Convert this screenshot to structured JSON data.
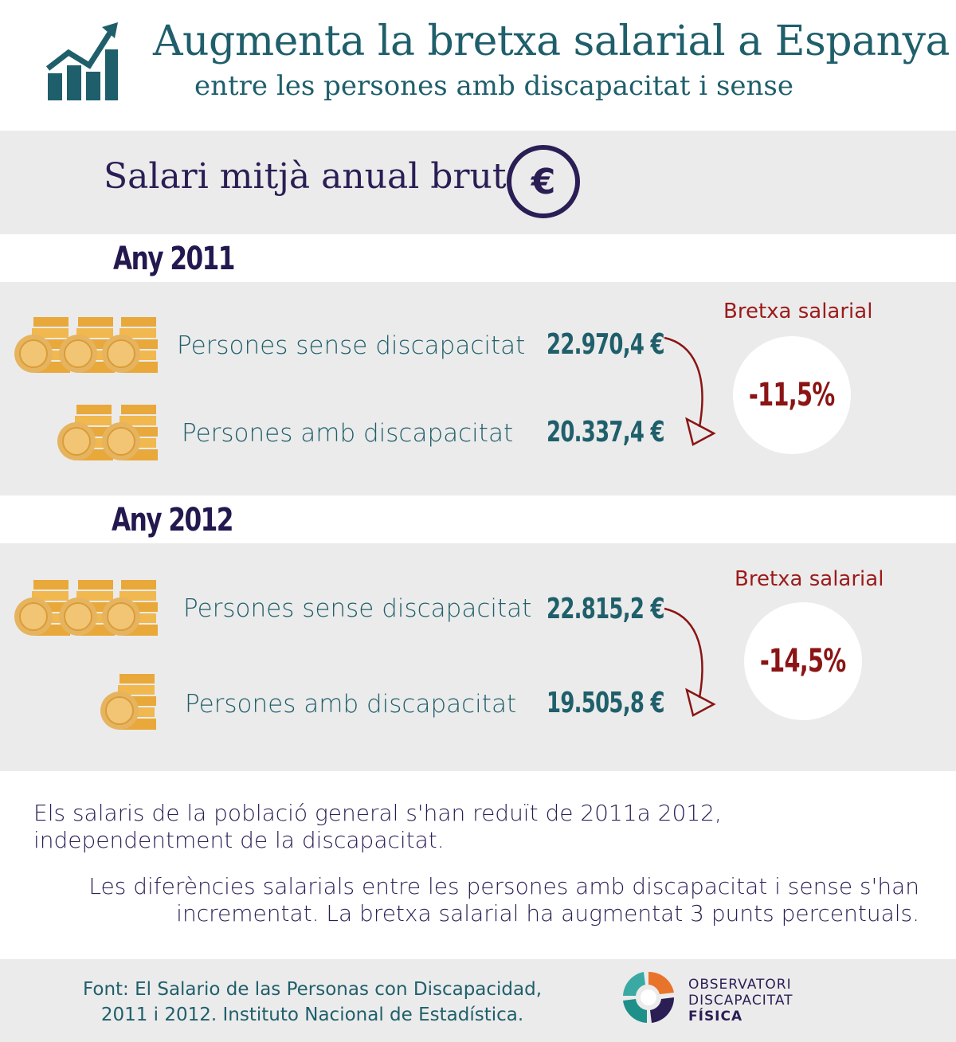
{
  "header": {
    "title": "Augmenta la bretxa salarial a Espanya",
    "subtitle": "entre les persones amb discapacitat i sense",
    "icon": "growth-chart-icon"
  },
  "salary_section": {
    "title": "Salari mitjà anual brut",
    "icon": "euro-icon",
    "icon_glyph": "€"
  },
  "years": [
    {
      "label": "Any 2011",
      "without_label": "Persones sense discapacitat",
      "without_value": "22.970,4 €",
      "with_label": "Persones amb discapacitat",
      "with_value": "20.337,4 €",
      "gap_label": "Bretxa salarial",
      "gap_value": "-11,5%"
    },
    {
      "label": "Any 2012",
      "without_label": "Persones sense discapacitat",
      "without_value": "22.815,2 €",
      "with_label": "Persones amb discapacitat",
      "with_value": "19.505,8 €",
      "gap_label": "Bretxa salarial",
      "gap_value": "-14,5%"
    }
  ],
  "notes": {
    "first": "Els salaris de la població general s'han reduït de 2011a 2012, independentment de la discapacitat.",
    "second_line1": "Les diferències salarials entre les persones amb discapacitat i sense s'han",
    "second_line2": "incrementat. La bretxa salarial ha augmentat 3 punts percentuals."
  },
  "footer": {
    "source_line1": "Font: El Salario de las Personas con Discapacidad,",
    "source_line2": "2011 i 2012. Instituto Nacional de Estadística.",
    "logo_line1": "OBSERVATORI",
    "logo_line2": "DISCAPACITAT",
    "logo_line3": "FÍSICA"
  },
  "colors": {
    "teal": "#1f5f6b",
    "navy": "#2a1e55",
    "red": "#9b1b1b",
    "band": "#ebebeb",
    "coin": "#f0b84f"
  }
}
